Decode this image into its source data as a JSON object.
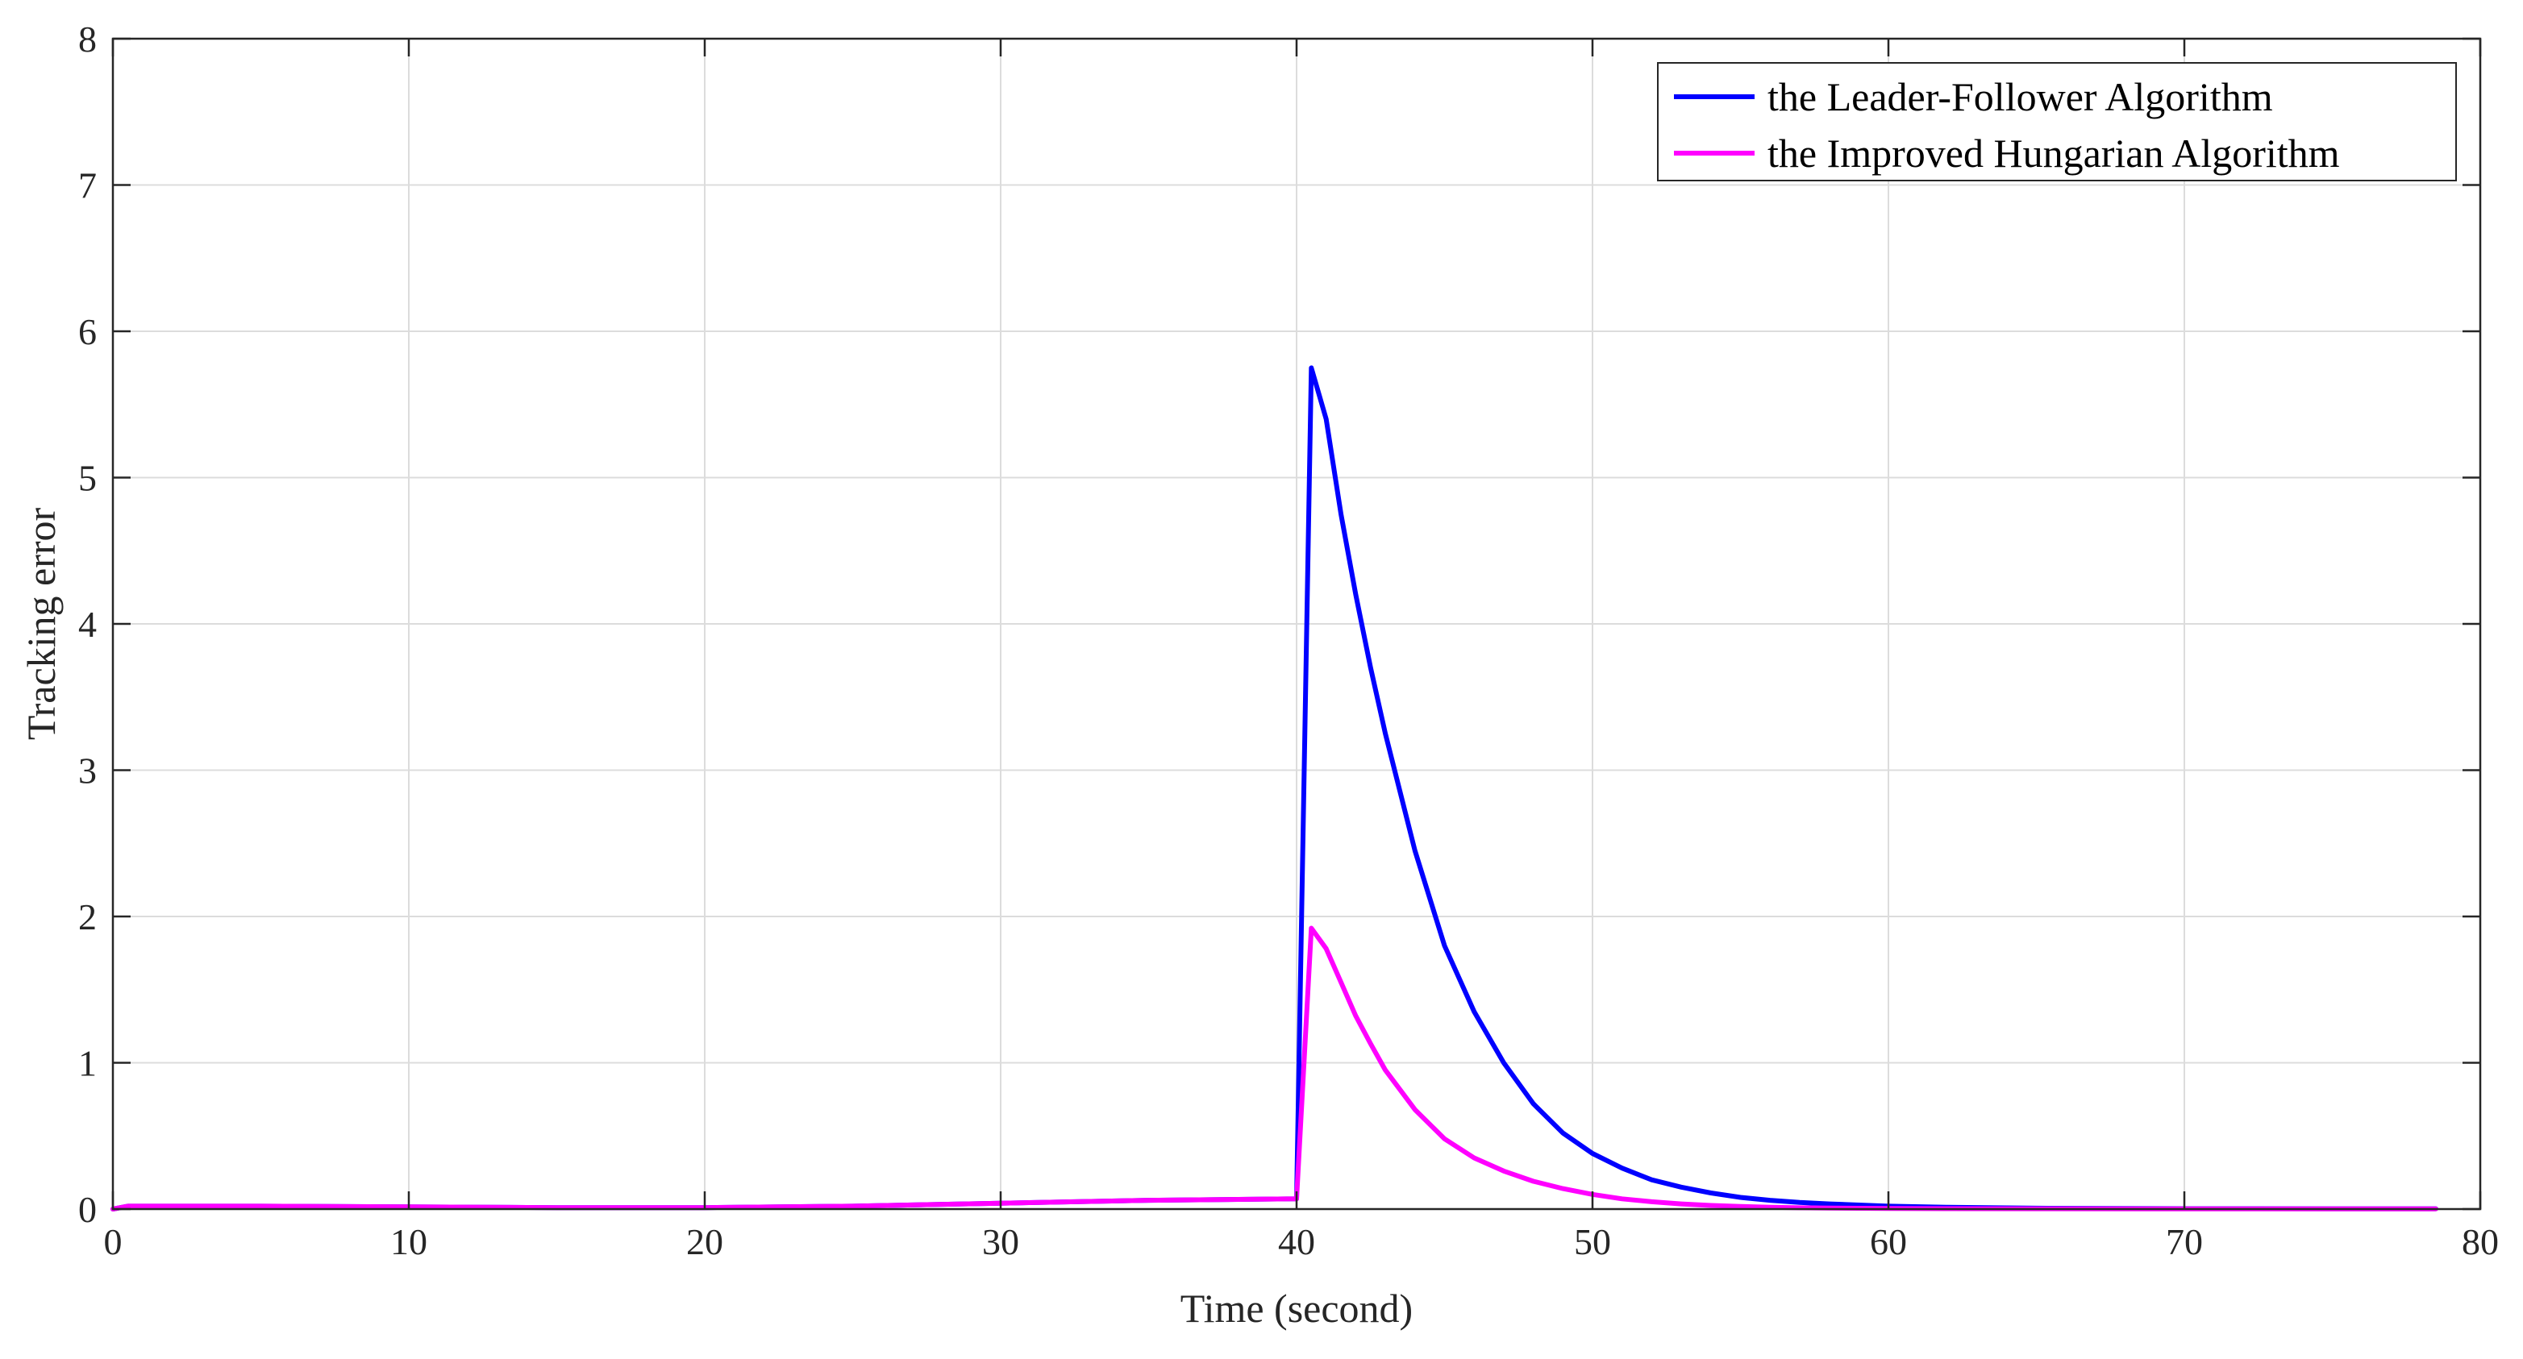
{
  "chart_data": {
    "type": "line",
    "title": "",
    "xlabel": "Time (second)",
    "ylabel": "Tracking error",
    "xlim": [
      0,
      80
    ],
    "ylim": [
      0,
      8
    ],
    "xticks": [
      0,
      10,
      20,
      30,
      40,
      50,
      60,
      70,
      80
    ],
    "yticks": [
      0,
      1,
      2,
      3,
      4,
      5,
      6,
      7,
      8
    ],
    "grid": true,
    "legend_position": "top-right",
    "series": [
      {
        "name": "the Leader-Follower Algorithm",
        "color": "#0000ff",
        "x": [
          0,
          0.5,
          5,
          10,
          15,
          20,
          25,
          30,
          35,
          40,
          40.5,
          41,
          41.5,
          42,
          42.5,
          43,
          44,
          45,
          46,
          47,
          48,
          49,
          50,
          51,
          52,
          53,
          54,
          55,
          56,
          57,
          58,
          60,
          62,
          65,
          70,
          75,
          78.5
        ],
        "y": [
          0,
          0.02,
          0.02,
          0.015,
          0.01,
          0.01,
          0.02,
          0.04,
          0.06,
          0.07,
          5.75,
          5.4,
          4.75,
          4.2,
          3.7,
          3.25,
          2.45,
          1.8,
          1.35,
          1.0,
          0.72,
          0.52,
          0.38,
          0.28,
          0.2,
          0.15,
          0.11,
          0.08,
          0.06,
          0.045,
          0.035,
          0.02,
          0.012,
          0.006,
          0.003,
          0.002,
          0.002
        ]
      },
      {
        "name": "the Improved Hungarian Algorithm",
        "color": "#ff00ff",
        "x": [
          0,
          0.5,
          5,
          10,
          15,
          20,
          25,
          30,
          35,
          40,
          40.5,
          41,
          41.5,
          42,
          42.5,
          43,
          44,
          45,
          46,
          47,
          48,
          49,
          50,
          51,
          52,
          53,
          54,
          55,
          56,
          57,
          58,
          60,
          62,
          65,
          70,
          75,
          78.5
        ],
        "y": [
          0,
          0.02,
          0.02,
          0.015,
          0.01,
          0.01,
          0.02,
          0.04,
          0.06,
          0.07,
          1.92,
          1.78,
          1.55,
          1.32,
          1.13,
          0.95,
          0.68,
          0.48,
          0.35,
          0.26,
          0.19,
          0.14,
          0.1,
          0.07,
          0.05,
          0.035,
          0.025,
          0.018,
          0.012,
          0.009,
          0.007,
          0.004,
          0.003,
          0.002,
          0.001,
          0.001,
          0.001
        ]
      }
    ]
  }
}
